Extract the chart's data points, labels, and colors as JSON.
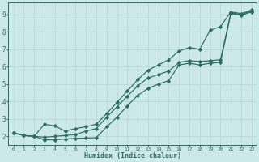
{
  "xlabel": "Humidex (Indice chaleur)",
  "bg_color": "#cce8e8",
  "grid_color": "#b8d8d8",
  "line_color": "#2a6e62",
  "xlim": [
    -0.5,
    23.5
  ],
  "ylim": [
    1.5,
    9.7
  ],
  "xticks": [
    0,
    1,
    2,
    3,
    4,
    5,
    6,
    7,
    8,
    9,
    10,
    11,
    12,
    13,
    14,
    15,
    16,
    17,
    18,
    19,
    20,
    21,
    22,
    23
  ],
  "yticks": [
    2,
    3,
    4,
    5,
    6,
    7,
    8,
    9
  ],
  "line1": [
    2.2,
    2.05,
    2.0,
    1.8,
    1.8,
    1.85,
    1.88,
    1.9,
    1.92,
    2.55,
    3.1,
    3.75,
    4.35,
    4.75,
    5.0,
    5.2,
    6.1,
    6.2,
    6.1,
    6.2,
    6.25,
    9.05,
    8.95,
    9.15
  ],
  "line2": [
    2.2,
    2.05,
    2.0,
    1.95,
    2.0,
    2.05,
    2.1,
    2.3,
    2.45,
    3.1,
    3.7,
    4.3,
    4.9,
    5.35,
    5.55,
    5.75,
    6.25,
    6.35,
    6.3,
    6.35,
    6.4,
    9.1,
    9.0,
    9.2
  ],
  "line3": [
    2.2,
    2.05,
    2.0,
    2.7,
    2.6,
    2.3,
    2.45,
    2.55,
    2.7,
    3.3,
    3.95,
    4.6,
    5.25,
    5.8,
    6.1,
    6.4,
    6.9,
    7.1,
    7.0,
    8.1,
    8.3,
    9.15,
    9.05,
    9.25
  ]
}
